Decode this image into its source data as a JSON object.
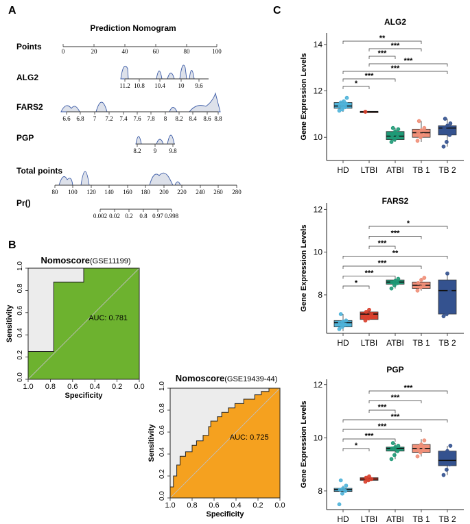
{
  "panel_labels": {
    "a": "A",
    "b": "B",
    "c": "C"
  },
  "chart_data": [
    {
      "type": "nomogram",
      "title": "Prediction Nomogram",
      "rows": [
        {
          "label": "Points",
          "ticks": [
            0,
            20,
            40,
            60,
            80,
            100
          ],
          "range": [
            0,
            100
          ]
        },
        {
          "label": "ALG2",
          "ticks": [
            "11.2",
            "10.8",
            "10.4",
            "10",
            "9.6"
          ],
          "range": [
            11.2,
            9.4
          ],
          "ticks_below": true
        },
        {
          "label": "FARS2",
          "ticks": [
            "6.6",
            "6.8",
            "7",
            "7.2",
            "7.4",
            "7.6",
            "7.8",
            "8",
            "8.2",
            "8.4",
            "8.6",
            "8.8"
          ],
          "range": [
            6.6,
            8.8
          ],
          "ticks_below": true
        },
        {
          "label": "PGP",
          "ticks": [
            "8.2",
            "9",
            "9.8"
          ],
          "range": [
            8.1,
            9.9
          ],
          "ticks_below": true
        },
        {
          "label": "Total points",
          "ticks": [
            80,
            100,
            120,
            140,
            160,
            180,
            200,
            220,
            240,
            260,
            280
          ],
          "range": [
            80,
            280
          ],
          "ticks_below": true
        },
        {
          "label": "Pr()",
          "ticks": [
            "0.002",
            "0.02",
            "0.2",
            "0.8",
            "0.97",
            "0.998"
          ],
          "ticks_below": true
        }
      ]
    },
    {
      "type": "roc",
      "title": "Nomoscore",
      "dataset": "(GSE11199)",
      "auc_text": "AUC: 0.781",
      "fill_color": "#6db22f",
      "xlabel": "Specificity",
      "ylabel": "Sensitivity",
      "xticks": [
        "1.0",
        "0.8",
        "0.6",
        "0.4",
        "0.2",
        "0.0"
      ],
      "yticks": [
        "0.0",
        "0.2",
        "0.4",
        "0.6",
        "0.8",
        "1.0"
      ],
      "curve": [
        [
          1,
          0
        ],
        [
          1,
          0.25
        ],
        [
          0.77,
          0.25
        ],
        [
          0.77,
          0.875
        ],
        [
          0.5,
          0.875
        ],
        [
          0.5,
          1
        ],
        [
          0,
          1
        ]
      ]
    },
    {
      "type": "roc",
      "title": "Nomoscore",
      "dataset": "(GSE19439-44)",
      "auc_text": "AUC: 0.725",
      "fill_color": "#f5a11f",
      "xlabel": "Specificity",
      "ylabel": "Sensitivity",
      "xticks": [
        "1.0",
        "0.8",
        "0.6",
        "0.4",
        "0.2",
        "0.0"
      ],
      "yticks": [
        "0.0",
        "0.2",
        "0.4",
        "0.6",
        "0.8",
        "1.0"
      ],
      "curve": [
        [
          1,
          0
        ],
        [
          1,
          0.1
        ],
        [
          0.97,
          0.1
        ],
        [
          0.97,
          0.2
        ],
        [
          0.94,
          0.2
        ],
        [
          0.94,
          0.3
        ],
        [
          0.91,
          0.3
        ],
        [
          0.91,
          0.38
        ],
        [
          0.86,
          0.38
        ],
        [
          0.86,
          0.42
        ],
        [
          0.8,
          0.42
        ],
        [
          0.8,
          0.48
        ],
        [
          0.76,
          0.48
        ],
        [
          0.76,
          0.52
        ],
        [
          0.7,
          0.52
        ],
        [
          0.7,
          0.57
        ],
        [
          0.65,
          0.57
        ],
        [
          0.65,
          0.65
        ],
        [
          0.63,
          0.65
        ],
        [
          0.63,
          0.7
        ],
        [
          0.57,
          0.7
        ],
        [
          0.57,
          0.74
        ],
        [
          0.53,
          0.74
        ],
        [
          0.53,
          0.78
        ],
        [
          0.47,
          0.78
        ],
        [
          0.47,
          0.82
        ],
        [
          0.41,
          0.82
        ],
        [
          0.41,
          0.86
        ],
        [
          0.33,
          0.86
        ],
        [
          0.33,
          0.9
        ],
        [
          0.23,
          0.9
        ],
        [
          0.23,
          0.94
        ],
        [
          0.17,
          0.94
        ],
        [
          0.17,
          0.97
        ],
        [
          0.1,
          0.97
        ],
        [
          0.1,
          1
        ],
        [
          0,
          1
        ]
      ]
    },
    {
      "type": "boxplot",
      "title": "ALG2",
      "ylabel": "Gene Expression Levels",
      "categories": [
        "HD",
        "LTBI",
        "ATBI",
        "TB 1",
        "TB 2"
      ],
      "yticks": [
        10,
        12,
        14
      ],
      "ylim": [
        9.0,
        14.5
      ],
      "boxes": [
        {
          "q1": 11.25,
          "median": 11.35,
          "q3": 11.5,
          "min": 11.1,
          "max": 11.6,
          "points": [
            11.15,
            11.2,
            11.3,
            11.35,
            11.4,
            11.45,
            11.5,
            11.55,
            11.7
          ]
        },
        {
          "q1": 11.08,
          "median": 11.1,
          "q3": 11.12,
          "min": 11.08,
          "max": 11.12,
          "points": [
            11.1
          ]
        },
        {
          "q1": 9.9,
          "median": 10.05,
          "q3": 10.25,
          "min": 9.8,
          "max": 10.4,
          "points": [
            9.8,
            9.9,
            10.0,
            10.1,
            10.25,
            10.35,
            10.4
          ]
        },
        {
          "q1": 10.0,
          "median": 10.2,
          "q3": 10.35,
          "min": 9.8,
          "max": 10.7,
          "points": [
            9.85,
            10.0,
            10.1,
            10.2,
            10.3,
            10.4,
            10.7
          ]
        },
        {
          "q1": 10.1,
          "median": 10.4,
          "q3": 10.5,
          "min": 9.6,
          "max": 10.8,
          "points": [
            9.6,
            9.8,
            10.1,
            10.4,
            10.5,
            10.6,
            10.8
          ]
        }
      ],
      "colors": [
        "#4fb3d9",
        "#d9412e",
        "#1f9a77",
        "#f08f78",
        "#34528f"
      ],
      "comparisons": [
        {
          "from": 0,
          "to": 3,
          "label": "**"
        },
        {
          "from": 1,
          "to": 3,
          "label": "***"
        },
        {
          "from": 1,
          "to": 2,
          "label": "***"
        },
        {
          "from": 1,
          "to": 4,
          "label": "***"
        },
        {
          "from": 0,
          "to": 4,
          "label": "***"
        },
        {
          "from": 0,
          "to": 2,
          "label": "***"
        },
        {
          "from": 0,
          "to": 1,
          "label": "*"
        }
      ]
    },
    {
      "type": "boxplot",
      "title": "FARS2",
      "ylabel": "Gene Expression Levels",
      "categories": [
        "HD",
        "LTBI",
        "ATBI",
        "TB 1",
        "TB 2"
      ],
      "yticks": [
        8,
        10,
        12
      ],
      "ylim": [
        6.2,
        12.3
      ],
      "boxes": [
        {
          "q1": 6.5,
          "median": 6.7,
          "q3": 6.8,
          "min": 6.3,
          "max": 7.1,
          "points": [
            6.4,
            6.5,
            6.6,
            6.7,
            6.75,
            6.8,
            7.1
          ]
        },
        {
          "q1": 6.85,
          "median": 7.1,
          "q3": 7.2,
          "min": 6.8,
          "max": 7.3,
          "points": [
            6.8,
            6.9,
            7.1,
            7.2,
            7.3
          ]
        },
        {
          "q1": 8.5,
          "median": 8.6,
          "q3": 8.7,
          "min": 8.3,
          "max": 8.8,
          "points": [
            8.3,
            8.45,
            8.55,
            8.6,
            8.65,
            8.75
          ]
        },
        {
          "q1": 8.3,
          "median": 8.45,
          "q3": 8.6,
          "min": 8.2,
          "max": 8.8,
          "points": [
            8.2,
            8.35,
            8.45,
            8.55,
            8.7,
            8.8
          ]
        },
        {
          "q1": 7.1,
          "median": 8.2,
          "q3": 8.7,
          "min": 7.0,
          "max": 9.0,
          "points": [
            7.0,
            7.1,
            8.2,
            8.5,
            9.0
          ]
        }
      ],
      "colors": [
        "#4fb3d9",
        "#d9412e",
        "#1f9a77",
        "#f08f78",
        "#34528f"
      ],
      "comparisons": [
        {
          "from": 1,
          "to": 4,
          "label": "*"
        },
        {
          "from": 1,
          "to": 3,
          "label": "***"
        },
        {
          "from": 1,
          "to": 2,
          "label": "***"
        },
        {
          "from": 0,
          "to": 4,
          "label": "**"
        },
        {
          "from": 0,
          "to": 3,
          "label": "***"
        },
        {
          "from": 0,
          "to": 2,
          "label": "***"
        },
        {
          "from": 0,
          "to": 1,
          "label": "*"
        }
      ]
    },
    {
      "type": "boxplot",
      "title": "PGP",
      "ylabel": "Gene Expression Levels",
      "categories": [
        "HD",
        "LTBI",
        "ATBI",
        "TB 1",
        "TB 2"
      ],
      "yticks": [
        8,
        10,
        12
      ],
      "ylim": [
        7.3,
        12.2
      ],
      "boxes": [
        {
          "q1": 7.98,
          "median": 8.05,
          "q3": 8.1,
          "min": 7.9,
          "max": 8.2,
          "points": [
            7.5,
            7.9,
            8.0,
            8.05,
            8.1,
            8.2,
            8.4
          ]
        },
        {
          "q1": 8.4,
          "median": 8.45,
          "q3": 8.5,
          "min": 8.35,
          "max": 8.55,
          "points": [
            8.35,
            8.4,
            8.45,
            8.5,
            8.55
          ]
        },
        {
          "q1": 9.5,
          "median": 9.6,
          "q3": 9.65,
          "min": 9.2,
          "max": 9.8,
          "points": [
            9.2,
            9.35,
            9.5,
            9.6,
            9.65,
            9.7,
            9.8
          ]
        },
        {
          "q1": 9.45,
          "median": 9.6,
          "q3": 9.75,
          "min": 9.3,
          "max": 9.95,
          "points": [
            9.3,
            9.45,
            9.55,
            9.65,
            9.75,
            9.9
          ]
        },
        {
          "q1": 8.95,
          "median": 9.15,
          "q3": 9.5,
          "min": 8.6,
          "max": 9.7,
          "points": [
            8.6,
            8.8,
            9.0,
            9.3,
            9.5,
            9.7
          ]
        }
      ],
      "colors": [
        "#4fb3d9",
        "#d9412e",
        "#1f9a77",
        "#f08f78",
        "#34528f"
      ],
      "comparisons": [
        {
          "from": 1,
          "to": 4,
          "label": "***"
        },
        {
          "from": 1,
          "to": 3,
          "label": "***"
        },
        {
          "from": 1,
          "to": 2,
          "label": "***"
        },
        {
          "from": 0,
          "to": 4,
          "label": "***"
        },
        {
          "from": 0,
          "to": 3,
          "label": "***"
        },
        {
          "from": 0,
          "to": 2,
          "label": "***"
        },
        {
          "from": 0,
          "to": 1,
          "label": "*"
        }
      ]
    }
  ]
}
